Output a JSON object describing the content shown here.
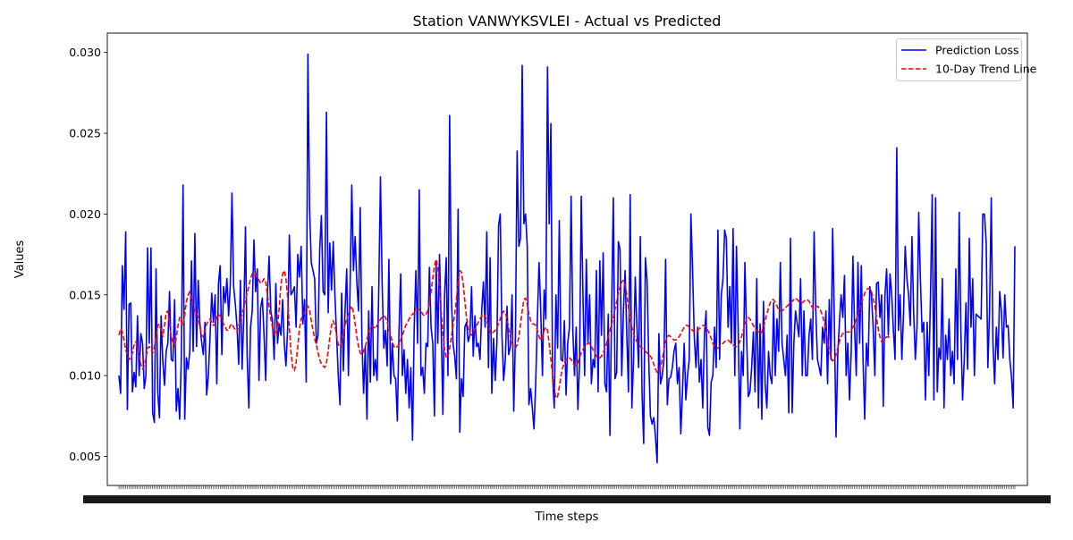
{
  "chart_data": {
    "type": "line",
    "title": "Station VANWYKSVLEI - Actual vs Predicted",
    "xlabel": "Time steps",
    "ylabel": "Values",
    "ylim": [
      0.0032,
      0.0312
    ],
    "yticks": [
      0.005,
      0.01,
      0.015,
      0.02,
      0.025,
      0.03
    ],
    "ytick_labels": [
      "0.005",
      "0.010",
      "0.015",
      "0.020",
      "0.025",
      "0.030"
    ],
    "x_tick_labels_note": "dense overlapping date tick labels (illegible)",
    "grid": false,
    "legend_position": "upper right",
    "legend": [
      "Prediction Loss",
      "10-Day Trend Line"
    ],
    "colors": {
      "series": "#0000ff",
      "trend": "#ff0000"
    },
    "series": [
      {
        "name": "Prediction Loss",
        "style": "solid",
        "values": [
          0.01,
          0.0089,
          0.0168,
          0.0141,
          0.0189,
          0.0079,
          0.0144,
          0.0145,
          0.009,
          0.0102,
          0.0093,
          0.0137,
          0.01,
          0.0126,
          0.012,
          0.0092,
          0.01,
          0.0179,
          0.012,
          0.0179,
          0.0077,
          0.0071,
          0.0166,
          0.009,
          0.0074,
          0.0137,
          0.0109,
          0.0094,
          0.0115,
          0.012,
          0.0152,
          0.011,
          0.0109,
          0.0147,
          0.0078,
          0.0092,
          0.0073,
          0.0112,
          0.0218,
          0.0073,
          0.0111,
          0.0104,
          0.0115,
          0.0171,
          0.0115,
          0.0188,
          0.0118,
          0.0159,
          0.0132,
          0.0121,
          0.0113,
          0.0133,
          0.0088,
          0.01,
          0.0124,
          0.0151,
          0.0133,
          0.015,
          0.0095,
          0.0157,
          0.0168,
          0.0113,
          0.0155,
          0.0145,
          0.016,
          0.0137,
          0.0156,
          0.0213,
          0.0155,
          0.0144,
          0.013,
          0.0107,
          0.0159,
          0.0104,
          0.0137,
          0.0192,
          0.0112,
          0.008,
          0.013,
          0.014,
          0.0184,
          0.0152,
          0.0166,
          0.0097,
          0.0142,
          0.0148,
          0.0125,
          0.0097,
          0.015,
          0.0174,
          0.014,
          0.0134,
          0.011,
          0.0157,
          0.012,
          0.0132,
          0.0125,
          0.0147,
          0.012,
          0.0106,
          0.0129,
          0.0187,
          0.015,
          0.0152,
          0.0155,
          0.013,
          0.0175,
          0.0161,
          0.018,
          0.0132,
          0.0147,
          0.0096,
          0.0299,
          0.0203,
          0.017,
          0.0165,
          0.016,
          0.012,
          0.0125,
          0.0178,
          0.0199,
          0.0152,
          0.015,
          0.0263,
          0.0139,
          0.0182,
          0.0153,
          0.0183,
          0.015,
          0.0125,
          0.01,
          0.0082,
          0.0151,
          0.0103,
          0.014,
          0.0166,
          0.01,
          0.0155,
          0.0218,
          0.0165,
          0.0186,
          0.0158,
          0.014,
          0.0204,
          0.0122,
          0.0089,
          0.0118,
          0.0073,
          0.014,
          0.0096,
          0.0155,
          0.01,
          0.011,
          0.0097,
          0.0154,
          0.0223,
          0.0157,
          0.0117,
          0.0128,
          0.0106,
          0.0172,
          0.0095,
          0.012,
          0.01,
          0.0098,
          0.0072,
          0.0128,
          0.0163,
          0.01,
          0.0116,
          0.0089,
          0.011,
          0.008,
          0.0105,
          0.006,
          0.013,
          0.0165,
          0.012,
          0.0215,
          0.01,
          0.0105,
          0.0089,
          0.012,
          0.0118,
          0.0167,
          0.013,
          0.012,
          0.0075,
          0.017,
          0.012,
          0.0175,
          0.013,
          0.0076,
          0.015,
          0.0173,
          0.01,
          0.0261,
          0.015,
          0.012,
          0.0112,
          0.0098,
          0.0203,
          0.0065,
          0.0098,
          0.0087,
          0.013,
          0.0133,
          0.0121,
          0.0125,
          0.0155,
          0.0112,
          0.0137,
          0.0118,
          0.012,
          0.011,
          0.014,
          0.0158,
          0.013,
          0.0189,
          0.0105,
          0.0173,
          0.0089,
          0.0123,
          0.0097,
          0.012,
          0.0193,
          0.02,
          0.0125,
          0.0097,
          0.011,
          0.0143,
          0.0113,
          0.0118,
          0.015,
          0.0078,
          0.0125,
          0.0239,
          0.018,
          0.0185,
          0.0292,
          0.0194,
          0.02,
          0.018,
          0.0082,
          0.0092,
          0.008,
          0.0067,
          0.0095,
          0.0135,
          0.017,
          0.014,
          0.01,
          0.0153,
          0.0135,
          0.0291,
          0.0194,
          0.0256,
          0.01,
          0.008,
          0.015,
          0.0117,
          0.0196,
          0.011,
          0.0109,
          0.0134,
          0.0088,
          0.012,
          0.013,
          0.0211,
          0.0129,
          0.01,
          0.013,
          0.0079,
          0.0108,
          0.0211,
          0.015,
          0.01,
          0.0172,
          0.012,
          0.015,
          0.0095,
          0.011,
          0.0105,
          0.0165,
          0.009,
          0.0171,
          0.0125,
          0.0176,
          0.0095,
          0.009,
          0.0138,
          0.0063,
          0.014,
          0.021,
          0.0098,
          0.0102,
          0.0183,
          0.0178,
          0.01,
          0.014,
          0.0165,
          0.0125,
          0.009,
          0.0212,
          0.008,
          0.011,
          0.0161,
          0.013,
          0.0105,
          0.0186,
          0.009,
          0.0058,
          0.0173,
          0.0159,
          0.011,
          0.0075,
          0.007,
          0.0074,
          0.0062,
          0.0046,
          0.0126,
          0.0095,
          0.01,
          0.011,
          0.0172,
          0.0082,
          0.0098,
          0.0099,
          0.0105,
          0.0115,
          0.012,
          0.0095,
          0.0105,
          0.0064,
          0.009,
          0.012,
          0.0085,
          0.01,
          0.011,
          0.02,
          0.0165,
          0.0124,
          0.0105,
          0.013,
          0.0096,
          0.011,
          0.008,
          0.0125,
          0.014,
          0.0068,
          0.0063,
          0.0096,
          0.01,
          0.013,
          0.0105,
          0.019,
          0.011,
          0.015,
          0.016,
          0.019,
          0.0185,
          0.013,
          0.0155,
          0.012,
          0.0191,
          0.01,
          0.018,
          0.013,
          0.0067,
          0.0115,
          0.01,
          0.017,
          0.0125,
          0.0087,
          0.009,
          0.0105,
          0.0127,
          0.009,
          0.016,
          0.008,
          0.0132,
          0.0073,
          0.0146,
          0.0095,
          0.008,
          0.0115,
          0.01,
          0.0095,
          0.0145,
          0.01,
          0.0135,
          0.0115,
          0.017,
          0.012,
          0.011,
          0.01,
          0.0125,
          0.0077,
          0.0185,
          0.0077,
          0.012,
          0.014,
          0.0132,
          0.0124,
          0.016,
          0.01,
          0.014,
          0.01,
          0.01,
          0.0125,
          0.0135,
          0.011,
          0.0189,
          0.014,
          0.011,
          0.0105,
          0.01,
          0.013,
          0.012,
          0.014,
          0.0095,
          0.0147,
          0.011,
          0.0191,
          0.0135,
          0.0062,
          0.0112,
          0.0133,
          0.015,
          0.0136,
          0.0162,
          0.01,
          0.012,
          0.0085,
          0.0115,
          0.0174,
          0.013,
          0.01,
          0.017,
          0.012,
          0.0168,
          0.011,
          0.0073,
          0.012,
          0.0106,
          0.0155,
          0.015,
          0.013,
          0.01,
          0.0157,
          0.0158,
          0.0136,
          0.015,
          0.0081,
          0.015,
          0.0166,
          0.0125,
          0.0163,
          0.015,
          0.0128,
          0.011,
          0.0241,
          0.0128,
          0.015,
          0.011,
          0.0138,
          0.018,
          0.016,
          0.015,
          0.0131,
          0.0186,
          0.014,
          0.011,
          0.013,
          0.0201,
          0.016,
          0.0127,
          0.0133,
          0.0085,
          0.0133,
          0.01,
          0.015,
          0.0212,
          0.0085,
          0.021,
          0.009,
          0.0117,
          0.011,
          0.016,
          0.008,
          0.0125,
          0.011,
          0.0135,
          0.01,
          0.0115,
          0.0095,
          0.0166,
          0.011,
          0.0201,
          0.0127,
          0.0085,
          0.011,
          0.0145,
          0.0104,
          0.0185,
          0.013,
          0.016,
          0.01,
          0.0138,
          0.0137,
          0.0136,
          0.0135,
          0.02,
          0.02,
          0.0182,
          0.0105,
          0.014,
          0.021,
          0.012,
          0.0095,
          0.013,
          0.011,
          0.0152,
          0.014,
          0.0111,
          0.015,
          0.013,
          0.0131,
          0.011,
          0.0099,
          0.008,
          0.018
        ]
      },
      {
        "name": "10-Day Trend Line",
        "style": "dashed",
        "values": [
          0.0125,
          0.0129,
          0.0127,
          0.0122,
          0.0116,
          0.0113,
          0.011,
          0.0111,
          0.0114,
          0.0119,
          0.0121,
          0.0118,
          0.0112,
          0.0107,
          0.0104,
          0.0106,
          0.0111,
          0.0117,
          0.0118,
          0.0116,
          0.0114,
          0.0118,
          0.0125,
          0.0131,
          0.0132,
          0.0128,
          0.0124,
          0.0131,
          0.0139,
          0.014,
          0.0132,
          0.0124,
          0.012,
          0.0118,
          0.0124,
          0.0131,
          0.0136,
          0.0133,
          0.0131,
          0.0138,
          0.0146,
          0.015,
          0.0152,
          0.0148,
          0.0143,
          0.014,
          0.014,
          0.0136,
          0.013,
          0.0125,
          0.0124,
          0.0128,
          0.0132,
          0.0134,
          0.0135,
          0.0133,
          0.0131,
          0.0132,
          0.0136,
          0.0138,
          0.0137,
          0.0135,
          0.0132,
          0.013,
          0.0128,
          0.0128,
          0.0131,
          0.0132,
          0.013,
          0.0128,
          0.0127,
          0.0131,
          0.0135,
          0.0138,
          0.0142,
          0.0147,
          0.0151,
          0.0155,
          0.016,
          0.0163,
          0.0164,
          0.0163,
          0.0161,
          0.0159,
          0.0157,
          0.0158,
          0.016,
          0.0158,
          0.015,
          0.0143,
          0.0135,
          0.013,
          0.0126,
          0.0125,
          0.013,
          0.0142,
          0.0156,
          0.0163,
          0.0165,
          0.016,
          0.0148,
          0.013,
          0.0114,
          0.0105,
          0.0103,
          0.0108,
          0.0118,
          0.0129,
          0.0135,
          0.0137,
          0.0139,
          0.0142,
          0.0143,
          0.014,
          0.0134,
          0.0128,
          0.0123,
          0.0119,
          0.0114,
          0.011,
          0.0107,
          0.0106,
          0.0105,
          0.0108,
          0.0115,
          0.0124,
          0.0131,
          0.0134,
          0.0131,
          0.0125,
          0.0119,
          0.0118,
          0.0121,
          0.0126,
          0.0131,
          0.0135,
          0.0138,
          0.0141,
          0.0143,
          0.0139,
          0.0132,
          0.0124,
          0.0118,
          0.0114,
          0.0113,
          0.0115,
          0.0118,
          0.0122,
          0.0127,
          0.013,
          0.0131,
          0.013,
          0.0129,
          0.0131,
          0.0133,
          0.0135,
          0.0136,
          0.0137,
          0.0136,
          0.0133,
          0.0129,
          0.0125,
          0.0121,
          0.0118,
          0.0117,
          0.0118,
          0.0119,
          0.0122,
          0.0125,
          0.0128,
          0.0131,
          0.0133,
          0.0135,
          0.0137,
          0.0138,
          0.0139,
          0.0141,
          0.0141,
          0.0141,
          0.014,
          0.0138,
          0.0137,
          0.0138,
          0.014,
          0.0145,
          0.0152,
          0.016,
          0.0168,
          0.0172,
          0.0167,
          0.0156,
          0.014,
          0.0126,
          0.0116,
          0.0111,
          0.0112,
          0.0117,
          0.0124,
          0.0131,
          0.0138,
          0.0147,
          0.0158,
          0.0165,
          0.0164,
          0.0157,
          0.0146,
          0.0136,
          0.0129,
          0.0126,
          0.0125,
          0.0127,
          0.0129,
          0.0131,
          0.0133,
          0.0135,
          0.0137,
          0.0138,
          0.0137,
          0.0134,
          0.013,
          0.0127,
          0.0126,
          0.0127,
          0.0128,
          0.013,
          0.0132,
          0.0135,
          0.0138,
          0.014,
          0.0139,
          0.0135,
          0.0129,
          0.0124,
          0.012,
          0.0118,
          0.0117,
          0.0119,
          0.0124,
          0.0132,
          0.014,
          0.0147,
          0.0148,
          0.0144,
          0.0138,
          0.0134,
          0.0132,
          0.0132,
          0.0131,
          0.0128,
          0.0124,
          0.0122,
          0.0124,
          0.0128,
          0.013,
          0.0128,
          0.012,
          0.011,
          0.01,
          0.0092,
          0.0086,
          0.0087,
          0.0093,
          0.01,
          0.0105,
          0.0108,
          0.011,
          0.0111,
          0.0111,
          0.011,
          0.0108,
          0.0106,
          0.0106,
          0.0108,
          0.0111,
          0.0114,
          0.0116,
          0.0118,
          0.0119,
          0.012,
          0.012,
          0.0118,
          0.0116,
          0.0114,
          0.0112,
          0.0111,
          0.0111,
          0.0112,
          0.0114,
          0.0117,
          0.012,
          0.0124,
          0.0128,
          0.0132,
          0.0136,
          0.0141,
          0.0146,
          0.0151,
          0.0155,
          0.0158,
          0.0159,
          0.0156,
          0.015,
          0.0142,
          0.0135,
          0.013,
          0.0126,
          0.0123,
          0.0121,
          0.0119,
          0.0118,
          0.0117,
          0.0116,
          0.0115,
          0.0114,
          0.0113,
          0.0112,
          0.011,
          0.0107,
          0.0104,
          0.0102,
          0.0102,
          0.0105,
          0.011,
          0.0116,
          0.0121,
          0.0124,
          0.0125,
          0.0124,
          0.0123,
          0.0122,
          0.0122,
          0.0123,
          0.0124,
          0.0126,
          0.0128,
          0.013,
          0.0131,
          0.0131,
          0.013,
          0.0129,
          0.0128,
          0.0127,
          0.0127,
          0.0128,
          0.0129,
          0.013,
          0.0131,
          0.0131,
          0.013,
          0.0128,
          0.0126,
          0.0123,
          0.012,
          0.0118,
          0.0117,
          0.0117,
          0.0118,
          0.0119,
          0.012,
          0.0121,
          0.0122,
          0.0122,
          0.0121,
          0.012,
          0.0119,
          0.0118,
          0.0118,
          0.0119,
          0.0121,
          0.0124,
          0.0128,
          0.0132,
          0.0135,
          0.0136,
          0.0135,
          0.0133,
          0.0131,
          0.0129,
          0.0128,
          0.0127,
          0.0126,
          0.0127,
          0.013,
          0.0134,
          0.0138,
          0.0142,
          0.0145,
          0.0147,
          0.0147,
          0.0145,
          0.0143,
          0.0141,
          0.014,
          0.014,
          0.0141,
          0.0142,
          0.0143,
          0.0144,
          0.0145,
          0.0146,
          0.0147,
          0.0148,
          0.0147,
          0.0146,
          0.0145,
          0.0145,
          0.0146,
          0.0147,
          0.0147,
          0.0146,
          0.0144,
          0.0142,
          0.0141,
          0.0142,
          0.0143,
          0.0142,
          0.014,
          0.0137,
          0.0133,
          0.0128,
          0.0122,
          0.0116,
          0.0111,
          0.0109,
          0.011,
          0.0113,
          0.0117,
          0.0121,
          0.0124,
          0.0126,
          0.0127,
          0.0127,
          0.0127,
          0.0127,
          0.0128,
          0.013,
          0.0132,
          0.0135,
          0.0138,
          0.0141,
          0.0145,
          0.0148,
          0.0151,
          0.0153,
          0.0154,
          0.0154,
          0.0152,
          0.0148,
          0.0143,
          0.0136,
          0.0129,
          0.0124,
          0.0121,
          0.0121,
          0.0123,
          0.0124,
          0.0124,
          0.0123
        ]
      }
    ]
  }
}
